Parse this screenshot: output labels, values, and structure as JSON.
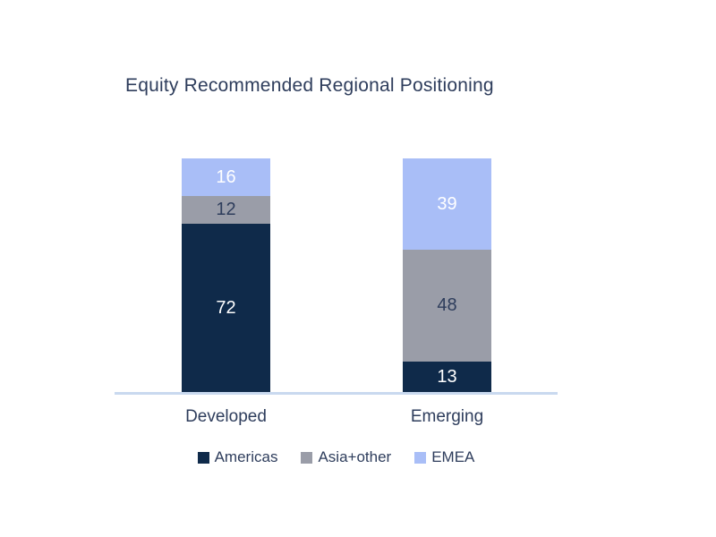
{
  "title": "Equity Recommended Regional Positioning",
  "colors": {
    "americas": "#0F2A4A",
    "asia_other": "#9A9DA8",
    "emea": "#A9BEF7",
    "axis_line": "#C9D9EF",
    "text": "#2E3D5C",
    "background": "#FFFFFF"
  },
  "chart_data": {
    "type": "bar",
    "variant": "stacked",
    "title": "Equity Recommended Regional Positioning",
    "categories": [
      "Developed",
      "Emerging"
    ],
    "series": [
      {
        "name": "Americas",
        "color": "#0F2A4A",
        "values": [
          72,
          13
        ]
      },
      {
        "name": "Asia+other",
        "color": "#9A9DA8",
        "values": [
          12,
          48
        ]
      },
      {
        "name": "EMEA",
        "color": "#A9BEF7",
        "values": [
          16,
          39
        ]
      }
    ],
    "stack_total": 100,
    "value_labels": true,
    "grid": false,
    "legend_position": "bottom",
    "segment_order_top_to_bottom": [
      "EMEA",
      "Asia+other",
      "Americas"
    ]
  }
}
